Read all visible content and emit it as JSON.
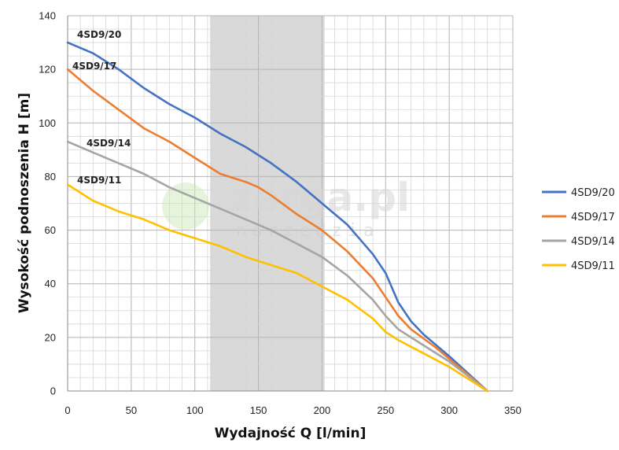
{
  "chart_data": {
    "type": "line",
    "xlabel": "Wydajność Q [l/min]",
    "ylabel": "Wysokość podnoszenia H [m]",
    "xlim": [
      0,
      350
    ],
    "ylim": [
      0,
      140
    ],
    "x_ticks": [
      0,
      50,
      100,
      150,
      200,
      250,
      300,
      350
    ],
    "y_ticks": [
      0,
      20,
      40,
      60,
      80,
      100,
      120,
      140
    ],
    "grid": true,
    "grid_minor_x": 10,
    "grid_minor_y": 5,
    "shaded_x_range": [
      112,
      202
    ],
    "legend_position": "right",
    "watermark": {
      "brand": "zerga.pl",
      "tagline": "narzędzia"
    },
    "series": [
      {
        "name": "4SD9/20",
        "color": "#4472c4",
        "points": [
          [
            0,
            130
          ],
          [
            20,
            126
          ],
          [
            40,
            120
          ],
          [
            60,
            113
          ],
          [
            80,
            107
          ],
          [
            100,
            102
          ],
          [
            120,
            96
          ],
          [
            140,
            91
          ],
          [
            160,
            85
          ],
          [
            180,
            78
          ],
          [
            200,
            70
          ],
          [
            220,
            62
          ],
          [
            240,
            51
          ],
          [
            250,
            44
          ],
          [
            260,
            33
          ],
          [
            270,
            26
          ],
          [
            280,
            21
          ],
          [
            300,
            13
          ],
          [
            330,
            0
          ]
        ]
      },
      {
        "name": "4SD9/17",
        "color": "#ed7d31",
        "points": [
          [
            0,
            120
          ],
          [
            20,
            112
          ],
          [
            40,
            105
          ],
          [
            60,
            98
          ],
          [
            80,
            93
          ],
          [
            100,
            87
          ],
          [
            120,
            81
          ],
          [
            140,
            78
          ],
          [
            150,
            76
          ],
          [
            160,
            73
          ],
          [
            180,
            66
          ],
          [
            200,
            60
          ],
          [
            220,
            52
          ],
          [
            240,
            42
          ],
          [
            250,
            35
          ],
          [
            260,
            28
          ],
          [
            270,
            23
          ],
          [
            290,
            16
          ],
          [
            330,
            0
          ]
        ]
      },
      {
        "name": "4SD9/14",
        "color": "#a5a5a5",
        "points": [
          [
            0,
            93
          ],
          [
            20,
            89
          ],
          [
            40,
            85
          ],
          [
            60,
            81
          ],
          [
            80,
            76
          ],
          [
            100,
            72
          ],
          [
            120,
            68
          ],
          [
            140,
            64
          ],
          [
            160,
            60
          ],
          [
            180,
            55
          ],
          [
            200,
            50
          ],
          [
            220,
            43
          ],
          [
            240,
            34
          ],
          [
            250,
            28
          ],
          [
            260,
            23
          ],
          [
            280,
            17
          ],
          [
            300,
            11
          ],
          [
            330,
            0
          ]
        ]
      },
      {
        "name": "4SD9/11",
        "color": "#ffc000",
        "points": [
          [
            0,
            77
          ],
          [
            20,
            71
          ],
          [
            40,
            67
          ],
          [
            60,
            64
          ],
          [
            80,
            60
          ],
          [
            100,
            57
          ],
          [
            120,
            54
          ],
          [
            140,
            50
          ],
          [
            160,
            47
          ],
          [
            180,
            44
          ],
          [
            200,
            39
          ],
          [
            220,
            34
          ],
          [
            240,
            27
          ],
          [
            250,
            22
          ],
          [
            260,
            19
          ],
          [
            280,
            14
          ],
          [
            300,
            9
          ],
          [
            330,
            0
          ]
        ]
      }
    ]
  }
}
